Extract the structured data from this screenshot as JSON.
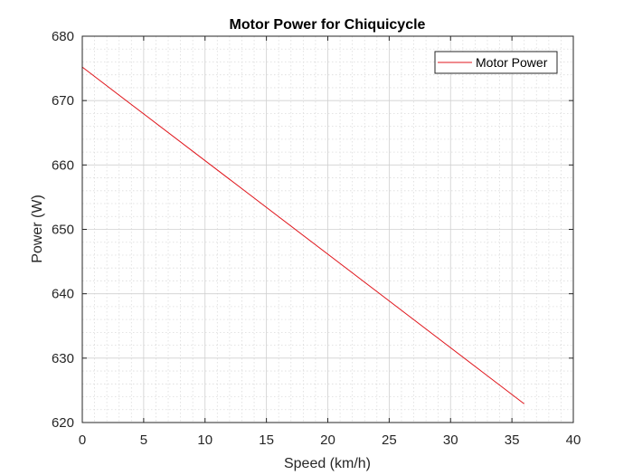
{
  "chart_data": {
    "type": "line",
    "title": "Motor Power for Chiquicycle",
    "xlabel": "Speed (km/h)",
    "ylabel": "Power (W)",
    "xlim": [
      0,
      40
    ],
    "ylim": [
      620,
      680
    ],
    "xticks": [
      0,
      5,
      10,
      15,
      20,
      25,
      30,
      35,
      40
    ],
    "yticks": [
      620,
      630,
      640,
      650,
      660,
      670,
      680
    ],
    "grid": true,
    "minor_grid": true,
    "legend_position": "top-right",
    "series": [
      {
        "name": "Motor Power",
        "color": "#e0161c",
        "x": [
          0,
          36
        ],
        "y": [
          675.2,
          622.9
        ]
      }
    ]
  }
}
